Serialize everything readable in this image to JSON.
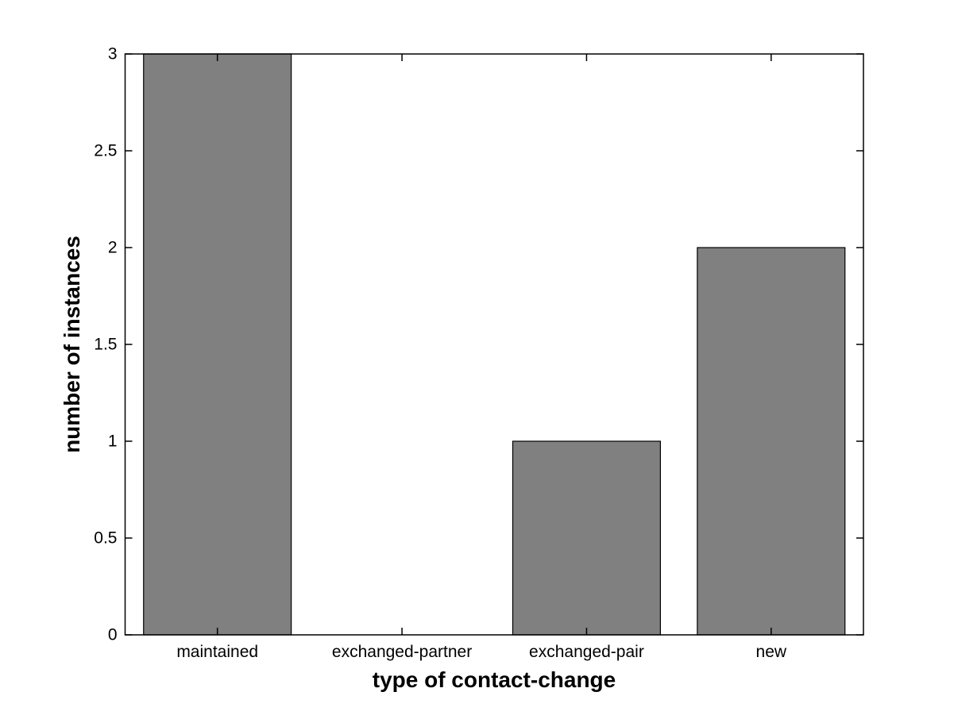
{
  "chart_data": {
    "type": "bar",
    "title": "",
    "xlabel": "type of contact-change",
    "ylabel": "number of instances",
    "categories": [
      "maintained",
      "exchanged-partner",
      "exchanged-pair",
      "new"
    ],
    "values": [
      3,
      0,
      1,
      2
    ],
    "ylim": [
      0,
      3
    ],
    "yticks": [
      0,
      0.5,
      1,
      1.5,
      2,
      2.5,
      3
    ],
    "ytick_labels": [
      "0",
      "0.5",
      "1",
      "1.5",
      "2",
      "2.5",
      "3"
    ],
    "bar_width_fraction": 0.8,
    "bar_fill_color": "#808080",
    "bar_edge_color": "#000000",
    "axis_color": "#000000",
    "background_color": "#ffffff",
    "grid": false,
    "legend_position": "none"
  }
}
